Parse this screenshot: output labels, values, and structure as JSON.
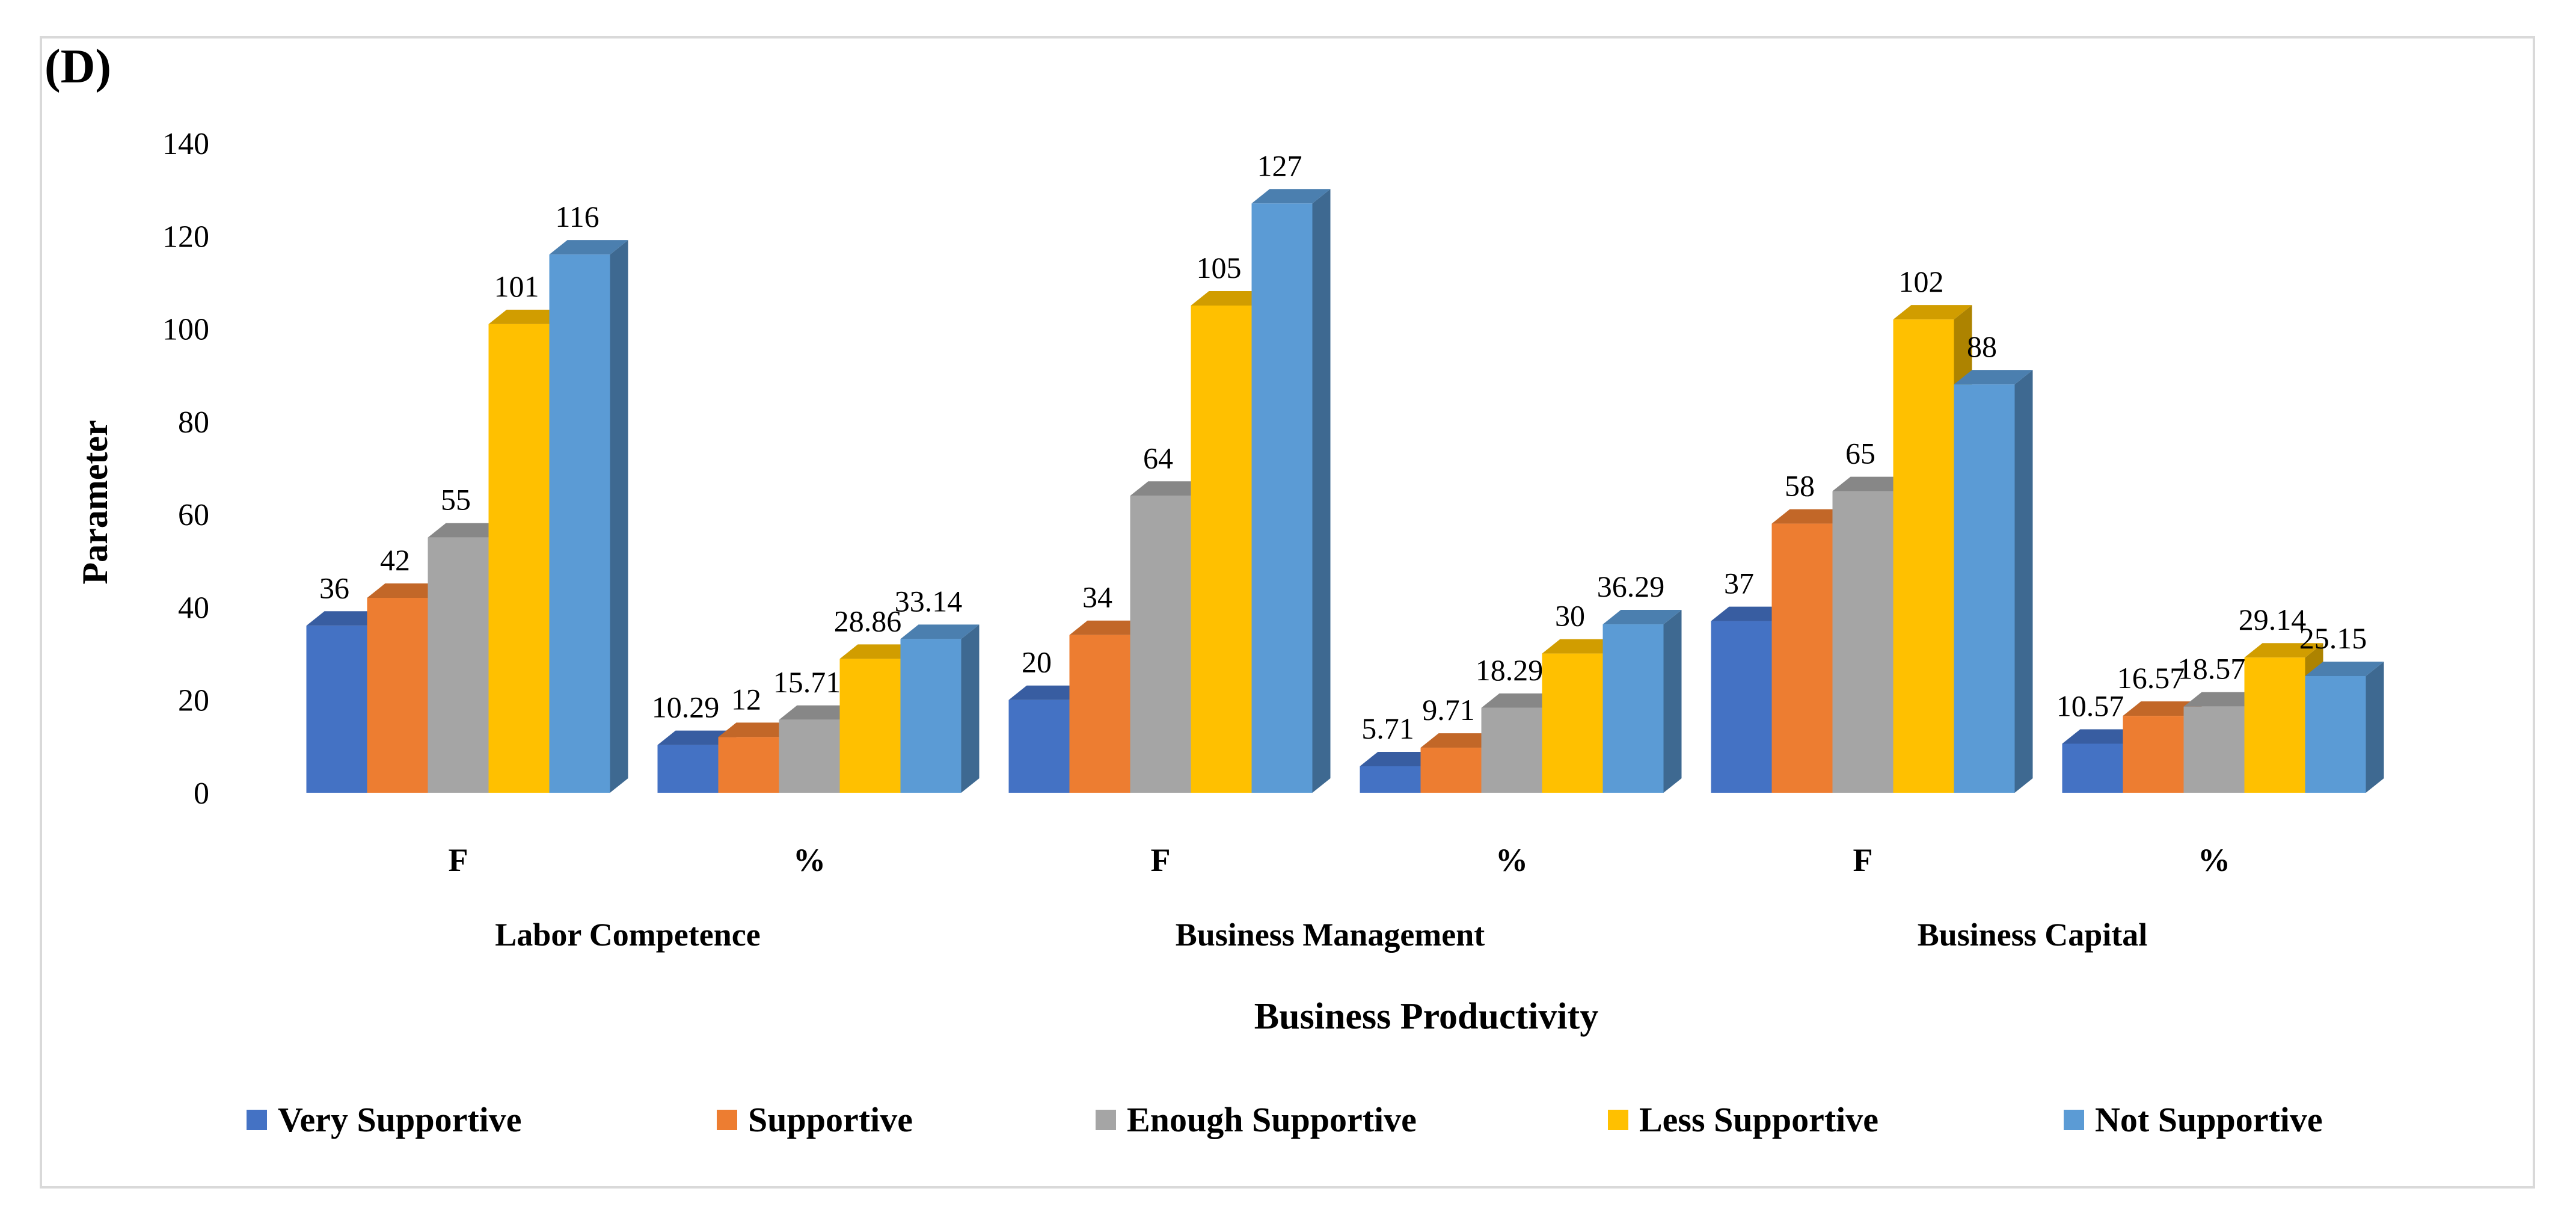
{
  "chart_data": {
    "type": "bar",
    "panel_label": "(D)",
    "ylabel": "Parameter",
    "xlabel": "Business Productivity",
    "ylim": [
      0,
      140
    ],
    "yticks": [
      0,
      20,
      40,
      60,
      80,
      100,
      120,
      140
    ],
    "groups": [
      "Labor Competence",
      "Business Management",
      "Business Capital"
    ],
    "categories": [
      "F",
      "%",
      "F",
      "%",
      "F",
      "%"
    ],
    "legend_position": "bottom",
    "series": [
      {
        "name": "Very Supportive",
        "color": "#4472C4",
        "values": [
          36,
          10.29,
          20,
          5.71,
          37,
          10.57
        ],
        "labels": [
          "36",
          "10.29",
          "20",
          "5.71",
          "37",
          "10.57"
        ]
      },
      {
        "name": "Supportive",
        "color": "#ED7D31",
        "values": [
          42,
          12,
          34,
          9.71,
          58,
          16.57
        ],
        "labels": [
          "42",
          "12",
          "34",
          "9.71",
          "58",
          "16.57"
        ]
      },
      {
        "name": "Enough Supportive",
        "color": "#A5A5A5",
        "values": [
          55,
          15.71,
          64,
          18.29,
          65,
          18.57
        ],
        "labels": [
          "55",
          "15.71",
          "64",
          "18.29",
          "65",
          "18.57"
        ]
      },
      {
        "name": "Less Supportive",
        "color": "#FFC000",
        "values": [
          101,
          28.86,
          105,
          30,
          102,
          29.14
        ],
        "labels": [
          "101",
          "28.86",
          "105",
          "30",
          "102",
          "29.14"
        ]
      },
      {
        "name": "Not Supportive",
        "color": "#5B9BD5",
        "values": [
          116,
          33.14,
          127,
          36.29,
          88,
          25.15
        ],
        "labels": [
          "116",
          "33.14",
          "127",
          "36.29",
          "88",
          "25.15"
        ]
      }
    ]
  }
}
